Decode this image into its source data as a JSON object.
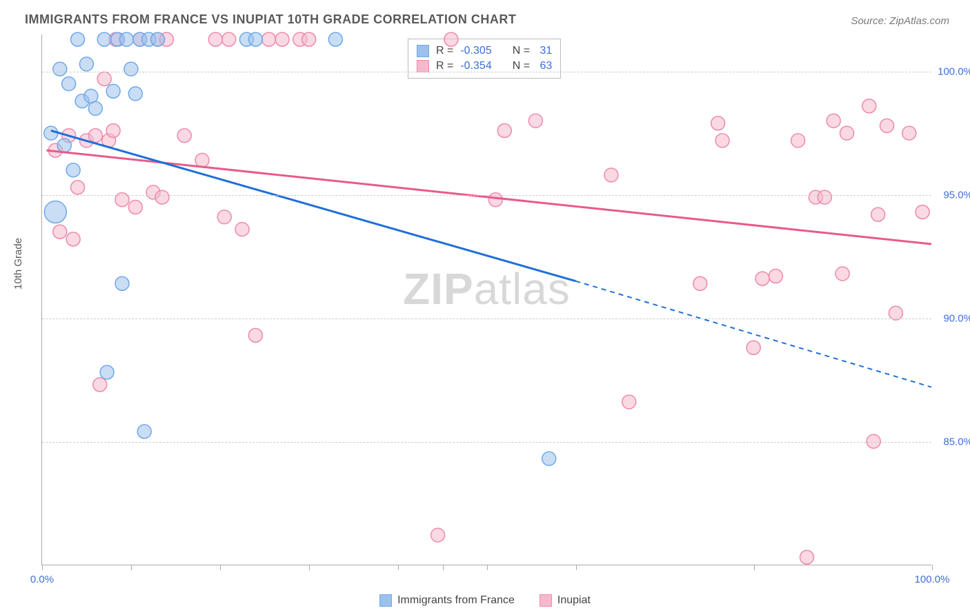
{
  "title": "IMMIGRANTS FROM FRANCE VS INUPIAT 10TH GRADE CORRELATION CHART",
  "source": "Source: ZipAtlas.com",
  "ylabel": "10th Grade",
  "watermark_a": "ZIP",
  "watermark_b": "atlas",
  "chart": {
    "type": "scatter",
    "background_color": "#ffffff",
    "grid_color": "#cccccc",
    "axis_color": "#aaaaaa",
    "xlim": [
      0,
      100
    ],
    "ylim": [
      80,
      101.5
    ],
    "xticks": [
      0,
      10,
      20,
      30,
      40,
      45,
      50,
      60,
      80,
      100
    ],
    "xtick_labels": {
      "0": "0.0%",
      "100": "100.0%"
    },
    "ytick_labels": [
      {
        "v": 85,
        "label": "85.0%"
      },
      {
        "v": 90,
        "label": "90.0%"
      },
      {
        "v": 95,
        "label": "95.0%"
      },
      {
        "v": 100,
        "label": "100.0%"
      }
    ],
    "series": [
      {
        "name": "Immigrants from France",
        "color_fill": "#9dc1ec",
        "color_stroke": "#6ea8e8",
        "line_color": "#1e6fd9",
        "marker_r": 10,
        "R": "-0.305",
        "N": "31",
        "trend_solid": {
          "x1": 1,
          "y1": 97.6,
          "x2": 60,
          "y2": 91.5
        },
        "trend_dashed": {
          "x1": 60,
          "y1": 91.5,
          "x2": 100,
          "y2": 87.2
        },
        "points": [
          {
            "x": 1.0,
            "y": 97.5,
            "r": 10
          },
          {
            "x": 1.5,
            "y": 94.3,
            "r": 16
          },
          {
            "x": 2.0,
            "y": 100.1,
            "r": 10
          },
          {
            "x": 2.5,
            "y": 97.0,
            "r": 10
          },
          {
            "x": 3.0,
            "y": 99.5,
            "r": 10
          },
          {
            "x": 3.5,
            "y": 96.0,
            "r": 10
          },
          {
            "x": 4.0,
            "y": 101.3,
            "r": 10
          },
          {
            "x": 4.5,
            "y": 98.8,
            "r": 10
          },
          {
            "x": 5.0,
            "y": 100.3,
            "r": 10
          },
          {
            "x": 5.5,
            "y": 99.0,
            "r": 10
          },
          {
            "x": 6.0,
            "y": 98.5,
            "r": 10
          },
          {
            "x": 7.0,
            "y": 101.3,
            "r": 10
          },
          {
            "x": 7.3,
            "y": 87.8,
            "r": 10
          },
          {
            "x": 8.0,
            "y": 99.2,
            "r": 10
          },
          {
            "x": 8.5,
            "y": 101.3,
            "r": 10
          },
          {
            "x": 9.0,
            "y": 91.4,
            "r": 10
          },
          {
            "x": 9.5,
            "y": 101.3,
            "r": 10
          },
          {
            "x": 10.0,
            "y": 100.1,
            "r": 10
          },
          {
            "x": 10.5,
            "y": 99.1,
            "r": 10
          },
          {
            "x": 11.0,
            "y": 101.3,
            "r": 10
          },
          {
            "x": 11.5,
            "y": 85.4,
            "r": 10
          },
          {
            "x": 12.0,
            "y": 101.3,
            "r": 10
          },
          {
            "x": 13.0,
            "y": 101.3,
            "r": 10
          },
          {
            "x": 23.0,
            "y": 101.3,
            "r": 10
          },
          {
            "x": 24.0,
            "y": 101.3,
            "r": 10
          },
          {
            "x": 33.0,
            "y": 101.3,
            "r": 10
          },
          {
            "x": 57.0,
            "y": 84.3,
            "r": 10
          }
        ]
      },
      {
        "name": "Inupiat",
        "color_fill": "#f6b9cc",
        "color_stroke": "#ef88ab",
        "line_color": "#e85a8a",
        "marker_r": 10,
        "R": "-0.354",
        "N": "63",
        "trend_solid": {
          "x1": 0.5,
          "y1": 96.8,
          "x2": 100,
          "y2": 93.0
        },
        "points": [
          {
            "x": 1.5,
            "y": 96.8
          },
          {
            "x": 2.0,
            "y": 93.5
          },
          {
            "x": 3.0,
            "y": 97.4
          },
          {
            "x": 3.5,
            "y": 93.2
          },
          {
            "x": 4.0,
            "y": 95.3
          },
          {
            "x": 5.0,
            "y": 97.2
          },
          {
            "x": 6.0,
            "y": 97.4
          },
          {
            "x": 6.5,
            "y": 87.3
          },
          {
            "x": 7.0,
            "y": 99.7
          },
          {
            "x": 7.5,
            "y": 97.2
          },
          {
            "x": 8.0,
            "y": 97.6
          },
          {
            "x": 8.3,
            "y": 101.3
          },
          {
            "x": 9.0,
            "y": 94.8
          },
          {
            "x": 10.5,
            "y": 94.5
          },
          {
            "x": 11.0,
            "y": 101.3
          },
          {
            "x": 12.5,
            "y": 95.1
          },
          {
            "x": 13.0,
            "y": 101.3
          },
          {
            "x": 13.5,
            "y": 94.9
          },
          {
            "x": 14.0,
            "y": 101.3
          },
          {
            "x": 16.0,
            "y": 97.4
          },
          {
            "x": 18.0,
            "y": 96.4
          },
          {
            "x": 19.5,
            "y": 101.3
          },
          {
            "x": 20.5,
            "y": 94.1
          },
          {
            "x": 21.0,
            "y": 101.3
          },
          {
            "x": 22.5,
            "y": 93.6
          },
          {
            "x": 24.0,
            "y": 89.3
          },
          {
            "x": 25.5,
            "y": 101.3
          },
          {
            "x": 27.0,
            "y": 101.3
          },
          {
            "x": 29.0,
            "y": 101.3
          },
          {
            "x": 30.0,
            "y": 101.3
          },
          {
            "x": 44.5,
            "y": 81.2
          },
          {
            "x": 46.0,
            "y": 101.3
          },
          {
            "x": 51.0,
            "y": 94.8
          },
          {
            "x": 52.0,
            "y": 97.6
          },
          {
            "x": 55.5,
            "y": 98.0
          },
          {
            "x": 64.0,
            "y": 95.8
          },
          {
            "x": 66.0,
            "y": 86.6
          },
          {
            "x": 74.0,
            "y": 91.4
          },
          {
            "x": 76.0,
            "y": 97.9
          },
          {
            "x": 76.5,
            "y": 97.2
          },
          {
            "x": 80.0,
            "y": 88.8
          },
          {
            "x": 81.0,
            "y": 91.6
          },
          {
            "x": 82.5,
            "y": 91.7
          },
          {
            "x": 85.0,
            "y": 97.2
          },
          {
            "x": 86.0,
            "y": 80.3
          },
          {
            "x": 87.0,
            "y": 94.9
          },
          {
            "x": 88.0,
            "y": 94.9
          },
          {
            "x": 89.0,
            "y": 98.0
          },
          {
            "x": 90.0,
            "y": 91.8
          },
          {
            "x": 90.5,
            "y": 97.5
          },
          {
            "x": 93.0,
            "y": 98.6
          },
          {
            "x": 93.5,
            "y": 85.0
          },
          {
            "x": 94.0,
            "y": 94.2
          },
          {
            "x": 95.0,
            "y": 97.8
          },
          {
            "x": 96.0,
            "y": 90.2
          },
          {
            "x": 97.5,
            "y": 97.5
          },
          {
            "x": 99.0,
            "y": 94.3
          }
        ]
      }
    ]
  },
  "legend_bottom": [
    {
      "label": "Immigrants from France",
      "fill": "#9dc1ec",
      "stroke": "#6ea8e8"
    },
    {
      "label": "Inupiat",
      "fill": "#f6b9cc",
      "stroke": "#ef88ab"
    }
  ],
  "legend_stats_labels": {
    "r": "R =",
    "n": "N ="
  }
}
